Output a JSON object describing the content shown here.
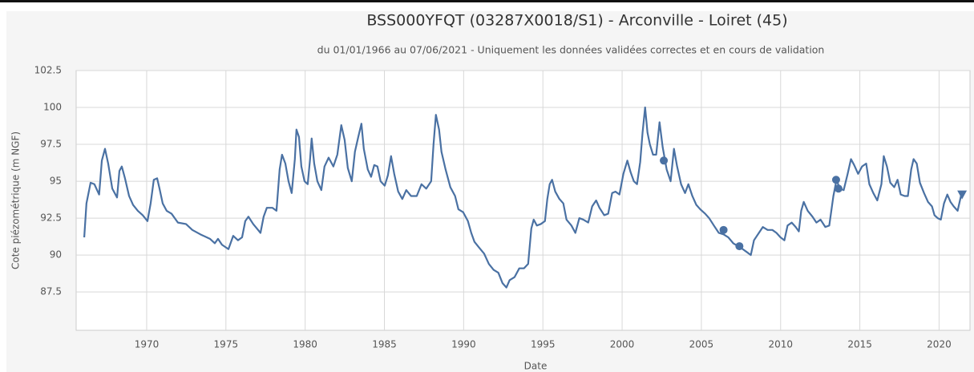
{
  "chart_data": {
    "type": "line",
    "title": "BSS000YFQT (03287X0018/S1) - Arconville - Loiret (45)",
    "subtitle": "du 01/01/1966 au 07/06/2021 - Uniquement les données validées correctes et en cours de validation",
    "xlabel": "Date",
    "ylabel": "Cote piézométrique (m NGF)",
    "xlim": [
      1965.55,
      2021.95
    ],
    "xticks": [
      1970,
      1975,
      1980,
      1985,
      1990,
      1995,
      2000,
      2005,
      2010,
      2015,
      2020
    ],
    "ylim": [
      84.9,
      102.5
    ],
    "yticks": [
      87.5,
      90,
      92.5,
      95,
      97.5,
      100,
      102.5
    ],
    "grid": true,
    "series": [
      {
        "color": "#4a71a3",
        "marker": "none",
        "x": [
          1966.06,
          1966.2,
          1966.46,
          1966.7,
          1967.0,
          1967.17,
          1967.37,
          1967.57,
          1967.83,
          1968.13,
          1968.28,
          1968.43,
          1968.63,
          1968.89,
          1969.14,
          1969.44,
          1969.75,
          1970.05,
          1970.25,
          1970.45,
          1970.66,
          1970.81,
          1971.01,
          1971.26,
          1971.57,
          1971.97,
          1972.48,
          1972.88,
          1973.39,
          1973.99,
          1974.3,
          1974.5,
          1974.75,
          1975.16,
          1975.46,
          1975.76,
          1976.02,
          1976.22,
          1976.42,
          1976.72,
          1977.03,
          1977.18,
          1977.38,
          1977.58,
          1977.94,
          1978.19,
          1978.39,
          1978.54,
          1978.75,
          1978.95,
          1979.15,
          1979.35,
          1979.45,
          1979.61,
          1979.76,
          1979.96,
          1980.16,
          1980.31,
          1980.41,
          1980.57,
          1980.77,
          1981.02,
          1981.22,
          1981.48,
          1981.78,
          1982.03,
          1982.28,
          1982.49,
          1982.69,
          1982.94,
          1983.14,
          1983.35,
          1983.55,
          1983.7,
          1983.95,
          1984.16,
          1984.36,
          1984.56,
          1984.76,
          1985.02,
          1985.22,
          1985.42,
          1985.62,
          1985.87,
          1986.13,
          1986.38,
          1986.68,
          1987.04,
          1987.34,
          1987.64,
          1987.95,
          1988.1,
          1988.25,
          1988.45,
          1988.6,
          1988.86,
          1989.16,
          1989.46,
          1989.67,
          1989.97,
          1990.27,
          1990.48,
          1990.68,
          1990.98,
          1991.29,
          1991.59,
          1991.89,
          1992.19,
          1992.45,
          1992.7,
          1992.9,
          1993.21,
          1993.51,
          1993.81,
          1994.07,
          1994.27,
          1994.42,
          1994.62,
          1994.87,
          1995.13,
          1995.28,
          1995.43,
          1995.58,
          1995.78,
          1996.04,
          1996.29,
          1996.49,
          1996.8,
          1997.05,
          1997.3,
          1997.55,
          1997.86,
          1998.11,
          1998.36,
          1998.57,
          1998.87,
          1999.12,
          1999.37,
          1999.58,
          1999.83,
          2000.08,
          2000.33,
          2000.54,
          2000.74,
          2000.94,
          2001.14,
          2001.29,
          2001.45,
          2001.6,
          2001.75,
          2001.95,
          2002.15,
          2002.36,
          2002.56,
          2002.81,
          2003.06,
          2003.27,
          2003.47,
          2003.72,
          2003.97,
          2004.18,
          2004.43,
          2004.68,
          2004.93,
          2005.24,
          2005.49,
          2005.79,
          2006.1,
          2006.4,
          2006.7,
          2007.01,
          2007.31,
          2007.61,
          2007.87,
          2008.12,
          2008.32,
          2008.63,
          2008.88,
          2009.18,
          2009.48,
          2009.74,
          2009.99,
          2010.24,
          2010.44,
          2010.7,
          2010.95,
          2011.15,
          2011.3,
          2011.46,
          2011.71,
          2012.01,
          2012.26,
          2012.52,
          2012.82,
          2013.07,
          2013.33,
          2013.53,
          2013.73,
          2013.98,
          2014.23,
          2014.44,
          2014.64,
          2014.89,
          2015.14,
          2015.4,
          2015.6,
          2015.85,
          2016.1,
          2016.36,
          2016.51,
          2016.71,
          2016.92,
          2017.17,
          2017.38,
          2017.58,
          2017.83,
          2018.03,
          2018.24,
          2018.39,
          2018.59,
          2018.79,
          2019.05,
          2019.3,
          2019.55,
          2019.71,
          2019.91,
          2020.11,
          2020.31,
          2020.52,
          2020.72,
          2020.92,
          2021.17,
          2021.38,
          2021.58
        ],
        "values": [
          91.2,
          93.5,
          94.9,
          94.8,
          94.1,
          96.4,
          97.2,
          96.2,
          94.5,
          93.9,
          95.7,
          96.0,
          95.2,
          94.0,
          93.4,
          93.0,
          92.7,
          92.3,
          93.5,
          95.1,
          95.2,
          94.5,
          93.5,
          93.0,
          92.8,
          92.2,
          92.1,
          91.7,
          91.4,
          91.1,
          90.8,
          91.1,
          90.7,
          90.4,
          91.3,
          91.0,
          91.2,
          92.3,
          92.6,
          92.1,
          91.7,
          91.5,
          92.6,
          93.2,
          93.2,
          93.0,
          95.8,
          96.8,
          96.2,
          95.0,
          94.2,
          96.5,
          98.5,
          98.0,
          96.0,
          95.0,
          94.8,
          96.5,
          97.9,
          96.2,
          95.0,
          94.4,
          96.0,
          96.6,
          96.0,
          96.8,
          98.8,
          97.8,
          95.9,
          95.0,
          97.0,
          98.0,
          98.9,
          97.2,
          95.8,
          95.3,
          96.1,
          96.0,
          95.0,
          94.7,
          95.4,
          96.7,
          95.5,
          94.3,
          93.8,
          94.4,
          94.0,
          94.0,
          94.8,
          94.5,
          95.0,
          97.5,
          99.5,
          98.5,
          97.0,
          95.8,
          94.6,
          94.0,
          93.1,
          92.9,
          92.3,
          91.5,
          90.9,
          90.5,
          90.1,
          89.4,
          89.0,
          88.8,
          88.1,
          87.8,
          88.3,
          88.5,
          89.1,
          89.1,
          89.4,
          91.8,
          92.4,
          92.0,
          92.1,
          92.3,
          93.8,
          94.8,
          95.1,
          94.3,
          93.8,
          93.5,
          92.4,
          92.0,
          91.5,
          92.5,
          92.4,
          92.2,
          93.3,
          93.7,
          93.2,
          92.7,
          92.8,
          94.2,
          94.3,
          94.1,
          95.5,
          96.4,
          95.6,
          95.0,
          94.8,
          96.3,
          98.3,
          100.0,
          98.3,
          97.5,
          96.8,
          96.8,
          99.0,
          97.3,
          95.8,
          95.0,
          97.2,
          96.0,
          94.8,
          94.2,
          94.8,
          94.0,
          93.4,
          93.1,
          92.8,
          92.5,
          92.0,
          91.5,
          91.4,
          91.2,
          90.8,
          90.6,
          90.4,
          90.2,
          90.0,
          91.0,
          91.5,
          91.9,
          91.7,
          91.7,
          91.5,
          91.2,
          91.0,
          92.0,
          92.2,
          91.9,
          91.6,
          93.0,
          93.6,
          93.0,
          92.6,
          92.2,
          92.4,
          91.9,
          92.0,
          94.0,
          95.1,
          94.5,
          94.4,
          95.5,
          96.5,
          96.1,
          95.5,
          96.0,
          96.2,
          94.8,
          94.2,
          93.7,
          94.8,
          96.7,
          96.0,
          94.9,
          94.6,
          95.1,
          94.1,
          94.0,
          94.0,
          95.8,
          96.5,
          96.2,
          94.9,
          94.2,
          93.6,
          93.3,
          92.7,
          92.5,
          92.4,
          93.5,
          94.1,
          93.6,
          93.3,
          93.0,
          94.0,
          94.2
        ]
      },
      {
        "color": "#4a71a3",
        "marker": "circle",
        "x": [
          2002.63,
          2006.4,
          2007.4,
          2013.5,
          2013.65
        ],
        "values": [
          96.4,
          91.7,
          90.6,
          95.1,
          94.5
        ]
      },
      {
        "color": "#4a71a3",
        "marker": "triangle",
        "x": [
          2021.45
        ],
        "values": [
          94.1
        ]
      }
    ]
  }
}
